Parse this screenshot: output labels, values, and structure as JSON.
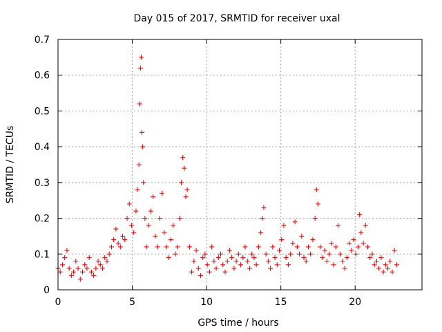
{
  "chart_data": {
    "type": "scatter",
    "title": "Day 015 of 2017, SRMTID for receiver uxal",
    "xlabel": "GPS time / hours",
    "ylabel": "SRMTID / TECUs",
    "xlim": [
      0,
      24.5
    ],
    "ylim": [
      0,
      0.7
    ],
    "xticks": [
      0,
      5,
      10,
      15,
      20
    ],
    "xtick_labels": [
      "0",
      "5",
      "10",
      "15",
      "20"
    ],
    "yticks": [
      0,
      0.1,
      0.2,
      0.3,
      0.4,
      0.5,
      0.6,
      0.7
    ],
    "ytick_labels": [
      "0",
      "0.1",
      "0.2",
      "0.3",
      "0.4",
      "0.5",
      "0.6",
      "0.7"
    ],
    "grid": true,
    "marker": "+",
    "color": "#ff0000",
    "series": [
      {
        "name": "SRMTID",
        "x": [
          0.0,
          0.15,
          0.3,
          0.45,
          0.6,
          0.75,
          0.9,
          1.05,
          1.2,
          1.35,
          1.5,
          1.65,
          1.8,
          1.95,
          2.1,
          2.25,
          2.4,
          2.55,
          2.7,
          2.85,
          3.0,
          3.15,
          3.3,
          3.45,
          3.6,
          3.75,
          3.9,
          4.05,
          4.2,
          4.35,
          4.5,
          4.65,
          4.8,
          4.95,
          5.1,
          5.25,
          5.35,
          5.45,
          5.5,
          5.55,
          5.6,
          5.65,
          5.7,
          5.75,
          5.85,
          5.95,
          6.1,
          6.25,
          6.4,
          6.55,
          6.7,
          6.85,
          7.0,
          7.15,
          7.3,
          7.45,
          7.6,
          7.75,
          7.9,
          8.05,
          8.2,
          8.3,
          8.4,
          8.5,
          8.6,
          8.7,
          8.85,
          9.0,
          9.15,
          9.3,
          9.45,
          9.6,
          9.75,
          9.9,
          10.05,
          10.2,
          10.35,
          10.5,
          10.65,
          10.8,
          10.95,
          11.1,
          11.25,
          11.4,
          11.55,
          11.7,
          11.85,
          12.0,
          12.15,
          12.3,
          12.45,
          12.6,
          12.75,
          12.9,
          13.05,
          13.2,
          13.35,
          13.5,
          13.65,
          13.75,
          13.85,
          14.0,
          14.15,
          14.3,
          14.45,
          14.6,
          14.75,
          14.9,
          15.05,
          15.2,
          15.35,
          15.5,
          15.65,
          15.8,
          15.95,
          16.1,
          16.25,
          16.4,
          16.55,
          16.7,
          16.85,
          17.0,
          17.15,
          17.3,
          17.4,
          17.5,
          17.65,
          17.8,
          17.95,
          18.1,
          18.25,
          18.4,
          18.55,
          18.7,
          18.85,
          19.0,
          19.15,
          19.3,
          19.45,
          19.6,
          19.75,
          19.9,
          20.05,
          20.2,
          20.3,
          20.4,
          20.55,
          20.7,
          20.85,
          21.0,
          21.15,
          21.3,
          21.45,
          21.6,
          21.75,
          21.9,
          22.05,
          22.2,
          22.35,
          22.5,
          22.65,
          22.8
        ],
        "y": [
          0.06,
          0.05,
          0.07,
          0.09,
          0.11,
          0.06,
          0.04,
          0.05,
          0.08,
          0.06,
          0.03,
          0.05,
          0.07,
          0.06,
          0.09,
          0.05,
          0.04,
          0.06,
          0.08,
          0.07,
          0.06,
          0.09,
          0.08,
          0.1,
          0.12,
          0.14,
          0.17,
          0.13,
          0.12,
          0.15,
          0.14,
          0.2,
          0.24,
          0.18,
          0.16,
          0.22,
          0.28,
          0.35,
          0.52,
          0.62,
          0.65,
          0.44,
          0.4,
          0.3,
          0.2,
          0.12,
          0.18,
          0.22,
          0.26,
          0.15,
          0.12,
          0.2,
          0.27,
          0.16,
          0.12,
          0.09,
          0.14,
          0.18,
          0.1,
          0.12,
          0.2,
          0.3,
          0.37,
          0.34,
          0.26,
          0.28,
          0.12,
          0.05,
          0.08,
          0.11,
          0.06,
          0.04,
          0.09,
          0.1,
          0.07,
          0.05,
          0.12,
          0.08,
          0.06,
          0.09,
          0.1,
          0.07,
          0.05,
          0.08,
          0.11,
          0.09,
          0.06,
          0.08,
          0.1,
          0.07,
          0.09,
          0.12,
          0.08,
          0.06,
          0.1,
          0.09,
          0.07,
          0.12,
          0.16,
          0.2,
          0.23,
          0.1,
          0.08,
          0.06,
          0.12,
          0.09,
          0.07,
          0.11,
          0.14,
          0.18,
          0.09,
          0.07,
          0.1,
          0.13,
          0.19,
          0.12,
          0.1,
          0.15,
          0.09,
          0.08,
          0.12,
          0.1,
          0.14,
          0.2,
          0.28,
          0.24,
          0.12,
          0.09,
          0.11,
          0.08,
          0.1,
          0.13,
          0.07,
          0.12,
          0.18,
          0.1,
          0.08,
          0.06,
          0.09,
          0.13,
          0.11,
          0.14,
          0.1,
          0.12,
          0.21,
          0.16,
          0.13,
          0.18,
          0.12,
          0.09,
          0.1,
          0.07,
          0.08,
          0.06,
          0.09,
          0.05,
          0.07,
          0.06,
          0.08,
          0.05,
          0.11,
          0.07
        ]
      }
    ]
  }
}
